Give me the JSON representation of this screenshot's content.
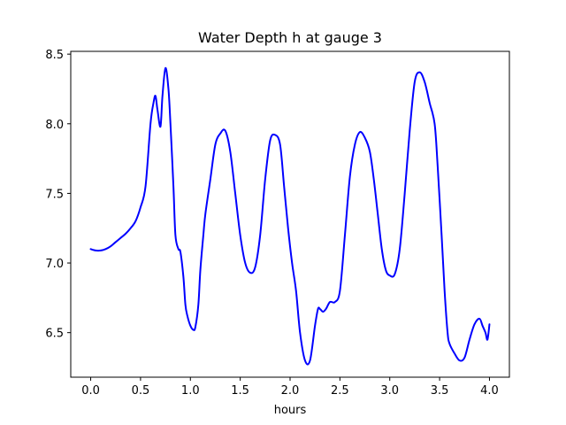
{
  "chart_data": {
    "type": "line",
    "title": "Water Depth h at gauge 3",
    "xlabel": "hours",
    "ylabel": "",
    "xlim": [
      -0.2,
      4.2
    ],
    "ylim": [
      6.18,
      8.52
    ],
    "x_ticks": [
      0.0,
      0.5,
      1.0,
      1.5,
      2.0,
      2.5,
      3.0,
      3.5,
      4.0
    ],
    "x_tick_labels": [
      "0.0",
      "0.5",
      "1.0",
      "1.5",
      "2.0",
      "2.5",
      "3.0",
      "3.5",
      "4.0"
    ],
    "y_ticks": [
      6.5,
      7.0,
      7.5,
      8.0,
      8.5
    ],
    "y_tick_labels": [
      "6.5",
      "7.0",
      "7.5",
      "8.0",
      "8.5"
    ],
    "grid": false,
    "legend": "none",
    "color": "#0000ff",
    "x": [
      0.0,
      0.05,
      0.1,
      0.15,
      0.2,
      0.25,
      0.3,
      0.35,
      0.4,
      0.45,
      0.5,
      0.55,
      0.6,
      0.63,
      0.65,
      0.67,
      0.7,
      0.72,
      0.75,
      0.78,
      0.8,
      0.83,
      0.85,
      0.88,
      0.9,
      0.93,
      0.95,
      0.97,
      1.0,
      1.03,
      1.05,
      1.08,
      1.1,
      1.13,
      1.15,
      1.2,
      1.25,
      1.3,
      1.35,
      1.4,
      1.45,
      1.5,
      1.55,
      1.6,
      1.65,
      1.7,
      1.75,
      1.8,
      1.85,
      1.9,
      1.94,
      1.98,
      2.02,
      2.06,
      2.1,
      2.15,
      2.2,
      2.25,
      2.28,
      2.3,
      2.33,
      2.36,
      2.4,
      2.45,
      2.5,
      2.55,
      2.6,
      2.65,
      2.7,
      2.75,
      2.8,
      2.84,
      2.88,
      2.92,
      2.96,
      3.0,
      3.05,
      3.1,
      3.15,
      3.2,
      3.25,
      3.3,
      3.35,
      3.4,
      3.45,
      3.48,
      3.52,
      3.55,
      3.58,
      3.6,
      3.65,
      3.7,
      3.75,
      3.8,
      3.85,
      3.9,
      3.93,
      3.96,
      3.98,
      4.0
    ],
    "y": [
      7.1,
      7.09,
      7.09,
      7.1,
      7.12,
      7.15,
      7.18,
      7.21,
      7.25,
      7.3,
      7.4,
      7.55,
      8.0,
      8.15,
      8.2,
      8.1,
      7.98,
      8.2,
      8.4,
      8.25,
      8.0,
      7.55,
      7.2,
      7.1,
      7.08,
      6.9,
      6.7,
      6.62,
      6.55,
      6.52,
      6.54,
      6.7,
      6.95,
      7.2,
      7.35,
      7.6,
      7.85,
      7.93,
      7.95,
      7.8,
      7.5,
      7.2,
      7.0,
      6.93,
      6.97,
      7.2,
      7.6,
      7.88,
      7.92,
      7.85,
      7.55,
      7.25,
      7.0,
      6.8,
      6.5,
      6.3,
      6.3,
      6.55,
      6.67,
      6.67,
      6.65,
      6.67,
      6.72,
      6.72,
      6.8,
      7.2,
      7.62,
      7.85,
      7.94,
      7.9,
      7.8,
      7.6,
      7.35,
      7.1,
      6.95,
      6.91,
      6.92,
      7.1,
      7.5,
      7.95,
      8.3,
      8.37,
      8.3,
      8.15,
      8.0,
      7.7,
      7.2,
      6.8,
      6.5,
      6.42,
      6.35,
      6.3,
      6.32,
      6.45,
      6.56,
      6.6,
      6.55,
      6.5,
      6.45,
      6.56
    ]
  }
}
